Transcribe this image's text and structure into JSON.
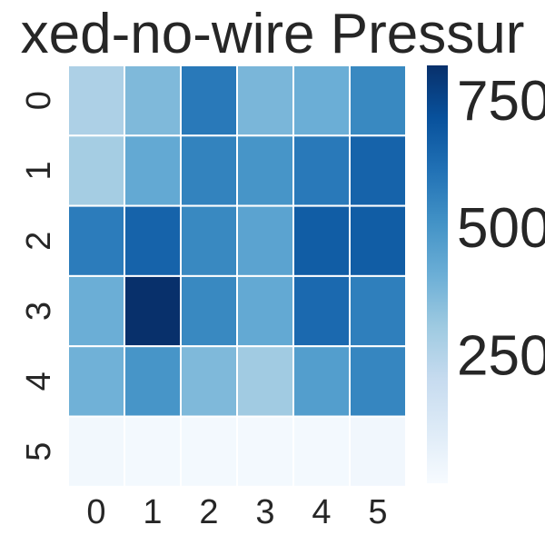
{
  "chart_data": {
    "type": "heatmap",
    "title": "xed-no-wire Pressur",
    "x_ticks": [
      "0",
      "1",
      "2",
      "3",
      "4",
      "5"
    ],
    "y_ticks": [
      "0",
      "1",
      "2",
      "3",
      "4",
      "5"
    ],
    "values": [
      [
        270,
        370,
        590,
        380,
        410,
        540
      ],
      [
        290,
        430,
        560,
        500,
        590,
        660
      ],
      [
        580,
        660,
        540,
        450,
        680,
        680
      ],
      [
        410,
        820,
        540,
        430,
        640,
        570
      ],
      [
        400,
        500,
        370,
        300,
        470,
        550
      ],
      [
        20,
        15,
        15,
        15,
        15,
        25
      ]
    ],
    "colorbar": {
      "min": 0,
      "max": 820,
      "ticks": [
        250,
        500,
        750
      ],
      "tick_labels": [
        "250",
        "500",
        "750"
      ],
      "colormap": "Blues"
    },
    "grid": true
  }
}
